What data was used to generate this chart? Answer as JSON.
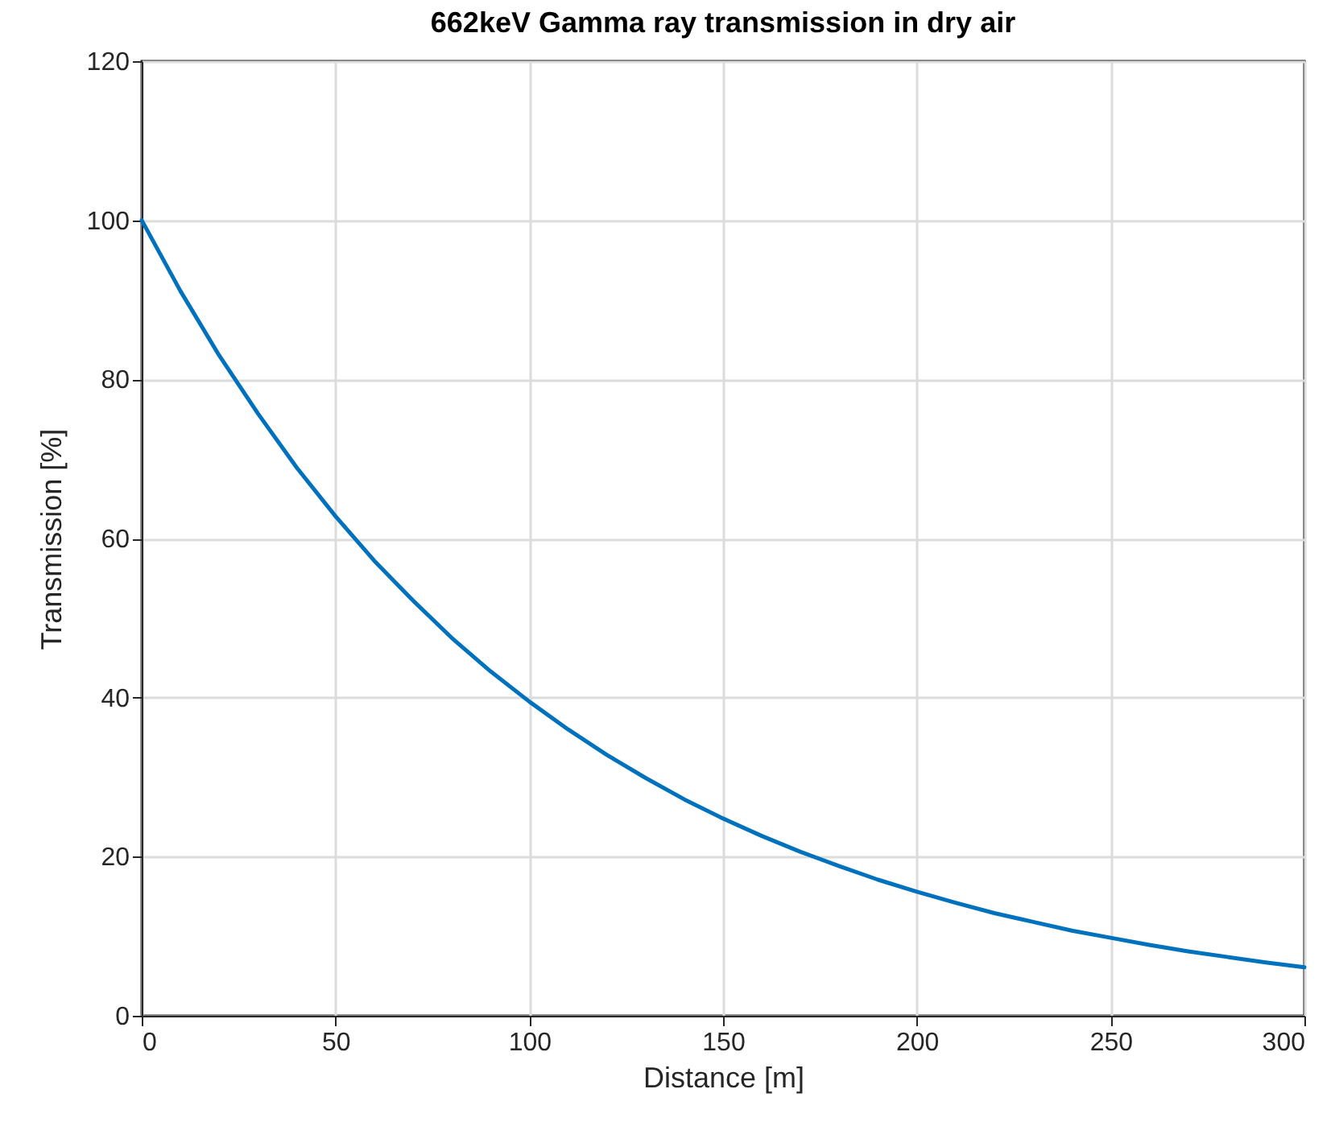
{
  "chart_data": {
    "type": "line",
    "title": "662keV Gamma ray transmission in dry air",
    "xlabel": "Distance [m]",
    "ylabel": "Transmission [%]",
    "x": [
      0,
      10,
      20,
      30,
      40,
      50,
      60,
      70,
      80,
      90,
      100,
      110,
      120,
      130,
      140,
      150,
      160,
      170,
      180,
      190,
      200,
      210,
      220,
      230,
      240,
      250,
      260,
      270,
      280,
      290,
      300
    ],
    "series": [
      {
        "color": "#0072bd",
        "values": [
          100,
          91.1,
          83.0,
          75.7,
          68.9,
          62.8,
          57.2,
          52.2,
          47.5,
          43.3,
          39.5,
          36.0,
          32.8,
          29.9,
          27.2,
          24.8,
          22.6,
          20.6,
          18.8,
          17.1,
          15.6,
          14.2,
          12.9,
          11.8,
          10.7,
          9.8,
          8.9,
          8.1,
          7.4,
          6.7,
          6.1
        ]
      }
    ],
    "xlim": [
      0,
      300
    ],
    "xticks": [
      0,
      50,
      100,
      150,
      200,
      250,
      300
    ],
    "ylim": [
      0,
      120
    ],
    "yticks": [
      0,
      20,
      40,
      60,
      80,
      100,
      120
    ],
    "grid": true,
    "line_style": "solid"
  }
}
